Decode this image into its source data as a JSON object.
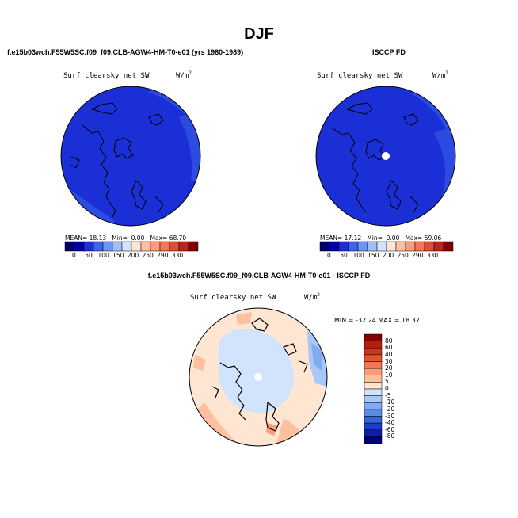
{
  "figure": {
    "title": "DJF",
    "left_panel_caption": "f.e15b03wch.F55W5SC.f09_f09.CLB-AGW4-HM-T0-e01 (yrs 1980-1989)",
    "right_panel_caption": "ISCCP FD",
    "diff_panel_caption": "f.e15b03wch.F55W5SC.f09_f09.CLB-AGW4-HM-T0-e01 - ISCCP FD"
  },
  "panels": {
    "model": {
      "variable": "Surf clearsky net SW",
      "units": "W/m",
      "units_exp": "2",
      "stats": {
        "mean_label": "MEAN=",
        "mean": "18.13",
        "min_label": "Min=",
        "min": "0.00",
        "max_label": "Max=",
        "max": "68.70"
      }
    },
    "obs": {
      "variable": "Surf clearsky net SW",
      "units": "W/m",
      "units_exp": "2",
      "stats": {
        "mean_label": "MEAN=",
        "mean": "17.12",
        "min_label": "Min=",
        "min": "0.00",
        "max_label": "Max=",
        "max": "59.06"
      }
    },
    "diff": {
      "variable": "Surf clearsky net SW",
      "units": "W/m",
      "units_exp": "2",
      "stats_text": "MIN = -32.24 MAX =  18.37"
    }
  },
  "colorbar_abs": {
    "tick_labels": [
      "0",
      "50",
      "100",
      "150",
      "200",
      "250",
      "290",
      "330"
    ],
    "colors": [
      "#000066",
      "#0000a8",
      "#1a30d6",
      "#3c64e6",
      "#6e96f0",
      "#a0c0f8",
      "#d2e4fc",
      "#ffe6d2",
      "#ffc0a0",
      "#ff9c78",
      "#f07850",
      "#dc5032",
      "#b42814",
      "#820000"
    ]
  },
  "colorbar_diff": {
    "tick_labels": [
      "80",
      "60",
      "40",
      "30",
      "20",
      "10",
      "5",
      "0",
      "-5",
      "-10",
      "-20",
      "-30",
      "-40",
      "-60",
      "-80"
    ],
    "colors": [
      "#820000",
      "#b41e0a",
      "#d2321e",
      "#e65032",
      "#f07850",
      "#fa9c78",
      "#ffc0a0",
      "#ffe6d2",
      "#d2e4fc",
      "#a8c8f8",
      "#82aaf0",
      "#5a8ce6",
      "#3264dc",
      "#1e3cc8",
      "#0a1eaa",
      "#000078"
    ]
  },
  "map_colors": {
    "deep_blue": "#1a30d6",
    "mid_blue": "#2c4be0",
    "pale_salmon": "#ffe6d2",
    "pale_blue": "#d2e4fc",
    "light_salmon": "#ffc0a0",
    "light_blue": "#a8c8f8"
  }
}
